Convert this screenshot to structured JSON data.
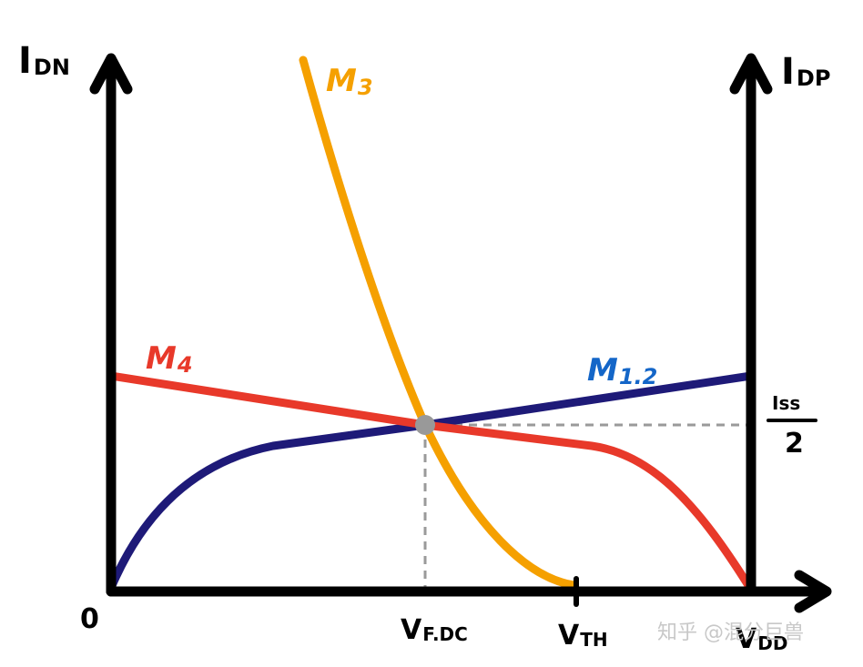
{
  "axes": {
    "left_label": "I",
    "left_label_sub": "DN",
    "right_label": "I",
    "right_label_sub": "DP",
    "origin_label": "0"
  },
  "ticks": {
    "vf_label": "V",
    "vf_sub": "F.DC",
    "vth_label": "V",
    "vth_sub": "TH",
    "vdd_label": "V",
    "vdd_sub": "DD",
    "iss_top": "Iss",
    "iss_bottom": "2"
  },
  "curves": {
    "m3": {
      "label": "M",
      "sub": "3",
      "color": "#F5A000"
    },
    "m4": {
      "label": "M",
      "sub": "4",
      "color": "#E8392A"
    },
    "m12": {
      "label": "M",
      "sub": "1.2",
      "color": "#1E1A78",
      "label_color": "#1466C8"
    }
  },
  "operating_point": {
    "color": "#999999"
  },
  "guide_color": "#9a9a9a",
  "watermark": "知乎 @混分巨兽"
}
